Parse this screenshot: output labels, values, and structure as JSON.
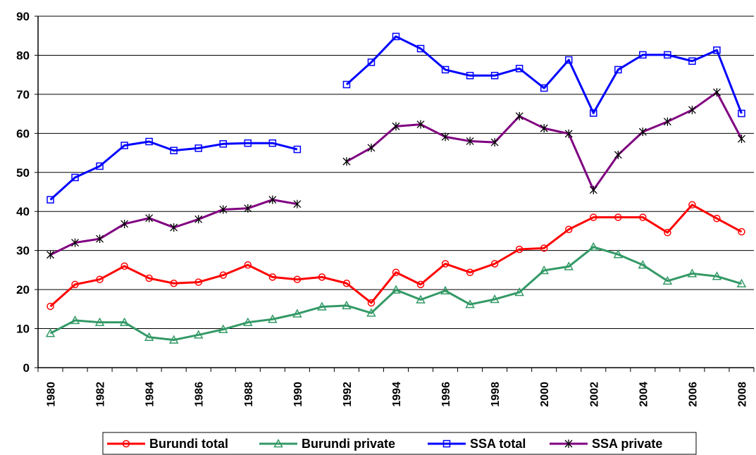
{
  "chart_data": {
    "type": "line",
    "categories": [
      "1980",
      null,
      "1982",
      null,
      "1984",
      null,
      "1986",
      null,
      "1988",
      null,
      "1990",
      null,
      "1992",
      null,
      "1994",
      null,
      "1996",
      null,
      "1998",
      null,
      "2000",
      null,
      "2002",
      null,
      "2004",
      null,
      "2006",
      null,
      "2008"
    ],
    "series": [
      {
        "name": "Burundi total",
        "color": "#ff0000",
        "marker": "circle",
        "values": [
          15.7,
          21.3,
          22.6,
          26.0,
          22.9,
          21.6,
          21.9,
          23.7,
          26.3,
          23.2,
          22.6,
          23.2,
          21.6,
          16.6,
          24.4,
          21.3,
          26.6,
          24.4,
          26.6,
          30.3,
          30.6,
          35.4,
          38.5,
          38.5,
          38.5,
          34.6,
          41.7,
          38.2,
          34.8
        ]
      },
      {
        "name": "Burundi private",
        "color": "#339966",
        "marker": "triangle",
        "values": [
          8.8,
          12.1,
          11.6,
          11.6,
          7.8,
          7.1,
          8.4,
          9.8,
          11.6,
          12.4,
          13.8,
          15.6,
          15.9,
          14.0,
          19.9,
          17.4,
          19.7,
          16.2,
          17.5,
          19.3,
          24.9,
          25.9,
          30.9,
          29.0,
          26.3,
          22.2,
          24.1,
          23.4,
          21.5
        ]
      },
      {
        "name": "SSA total",
        "color": "#0000ff",
        "marker": "square",
        "values": [
          43.0,
          48.7,
          51.6,
          56.9,
          57.9,
          55.6,
          56.2,
          57.3,
          57.5,
          57.5,
          55.9,
          null,
          72.5,
          78.2,
          84.8,
          81.7,
          76.3,
          74.8,
          74.8,
          76.6,
          71.6,
          78.8,
          65.2,
          76.3,
          80.1,
          80.1,
          78.5,
          81.3,
          65.1
        ]
      },
      {
        "name": "SSA private",
        "color": "#800080",
        "marker": "asterisk",
        "values": [
          28.9,
          32.0,
          33.0,
          36.8,
          38.3,
          35.9,
          38.0,
          40.5,
          40.8,
          43.0,
          41.9,
          null,
          52.8,
          56.3,
          61.8,
          62.3,
          59.1,
          58.0,
          57.7,
          64.4,
          61.3,
          59.9,
          45.5,
          54.5,
          60.4,
          63.0,
          66.0,
          70.5,
          58.6
        ]
      }
    ],
    "ylim": [
      0,
      90
    ],
    "yticks": [
      0,
      10,
      20,
      30,
      40,
      50,
      60,
      70,
      80,
      90
    ],
    "grid": true,
    "legend": "bottom"
  }
}
